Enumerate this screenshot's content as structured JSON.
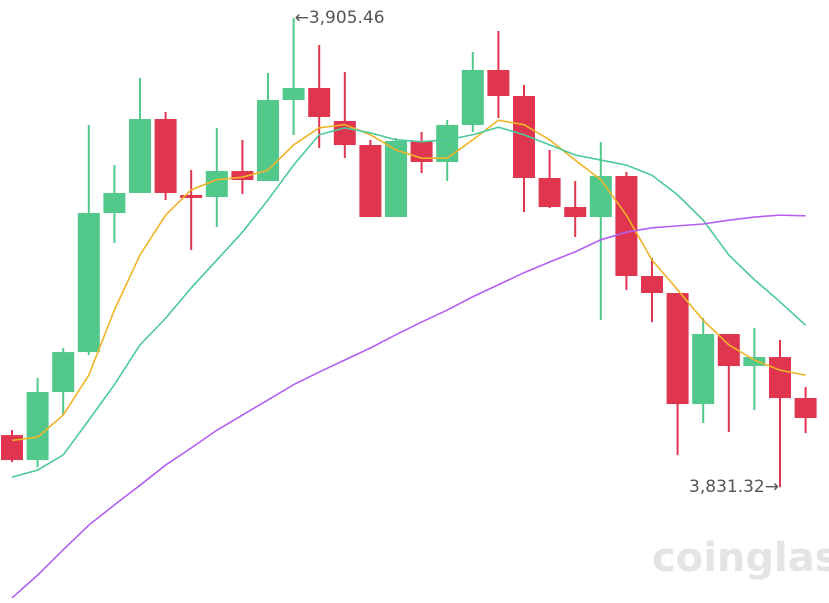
{
  "chart_data": {
    "type": "candlestick",
    "ylim": [
      3813,
      3908.3
    ],
    "up_color": "#52c98b",
    "down_color": "#e0354f",
    "candles": {
      "open": [
        3839.54,
        3835.59,
        3846.34,
        3852.66,
        3874.63,
        3877.8,
        3889.49,
        3877.48,
        3877.16,
        3881.27,
        3879.69,
        3892.5,
        3894.39,
        3889.18,
        3885.38,
        3874.0,
        3886.02,
        3882.7,
        3888.55,
        3897.24,
        3893.13,
        3880.17,
        3875.58,
        3874.0,
        3880.48,
        3864.68,
        3861.99,
        3844.44,
        3855.51,
        3850.45,
        3851.87,
        3845.39
      ],
      "high": [
        3840.33,
        3848.55,
        3853.29,
        3888.55,
        3882.22,
        3895.98,
        3890.6,
        3881.43,
        3888.07,
        3886.17,
        3896.77,
        3905.46,
        3901.19,
        3896.92,
        3886.17,
        3886.49,
        3887.44,
        3889.34,
        3900.09,
        3903.4,
        3894.87,
        3884.59,
        3879.69,
        3885.86,
        3881.12,
        3867.52,
        3861.99,
        3858.04,
        3855.51,
        3856.46,
        3854.56,
        3847.13
      ],
      "low": [
        3835.27,
        3834.48,
        3842.7,
        3852.19,
        3869.89,
        3877.8,
        3876.69,
        3868.79,
        3872.42,
        3877.64,
        3879.69,
        3886.96,
        3884.91,
        3883.33,
        3874.0,
        3874.0,
        3880.96,
        3879.69,
        3887.44,
        3889.65,
        3874.79,
        3875.42,
        3870.84,
        3857.72,
        3862.46,
        3857.4,
        3836.38,
        3841.44,
        3840.01,
        3843.49,
        3831.32,
        3839.86
      ],
      "close": [
        3835.59,
        3846.34,
        3852.66,
        3874.63,
        3877.8,
        3889.49,
        3877.8,
        3877.01,
        3881.27,
        3879.85,
        3892.5,
        3894.39,
        3889.81,
        3885.38,
        3874.0,
        3886.02,
        3882.7,
        3888.55,
        3897.24,
        3893.13,
        3880.17,
        3875.58,
        3874.0,
        3880.48,
        3864.68,
        3861.99,
        3844.44,
        3855.51,
        3850.45,
        3851.87,
        3845.39,
        3842.23
      ]
    },
    "lines": [
      {
        "color": "#f0b429",
        "values": [
          3838.7,
          3839.2,
          3842.7,
          3849.0,
          3859.3,
          3868.0,
          3874.3,
          3878.3,
          3879.9,
          3880.3,
          3881.4,
          3885.4,
          3888.1,
          3888.6,
          3887.0,
          3884.6,
          3883.3,
          3883.3,
          3886.2,
          3889.3,
          3888.6,
          3886.2,
          3883.0,
          3879.9,
          3874.3,
          3867.2,
          3862.5,
          3857.7,
          3853.8,
          3851.4,
          3849.8,
          3849.0
        ]
      },
      {
        "color": "#4cc99a",
        "values": [
          3832.9,
          3834.0,
          3836.4,
          3841.9,
          3847.5,
          3853.8,
          3858.0,
          3862.8,
          3867.2,
          3871.6,
          3876.7,
          3882.2,
          3887.0,
          3888.1,
          3887.3,
          3886.2,
          3885.9,
          3886.2,
          3887.0,
          3888.2,
          3887.0,
          3885.4,
          3883.8,
          3883.0,
          3882.2,
          3880.6,
          3877.5,
          3873.5,
          3868.0,
          3864.1,
          3860.6,
          3856.9
        ]
      },
      {
        "color": "#b45ff0",
        "values": [
          3813.8,
          3817.4,
          3821.4,
          3825.3,
          3828.5,
          3831.6,
          3834.8,
          3837.5,
          3840.3,
          3842.7,
          3845.1,
          3847.5,
          3849.5,
          3851.4,
          3853.3,
          3855.4,
          3857.4,
          3859.3,
          3861.4,
          3863.3,
          3865.2,
          3866.9,
          3868.5,
          3870.4,
          3871.6,
          3872.3,
          3872.6,
          3872.9,
          3873.5,
          3874.0,
          3874.3,
          3874.2
        ]
      }
    ],
    "annotations": [
      {
        "text": "←3,905.46",
        "value": 3905.46
      },
      {
        "text": "3,831.32→",
        "value": 3831.32
      }
    ],
    "watermark": "coinglass"
  }
}
